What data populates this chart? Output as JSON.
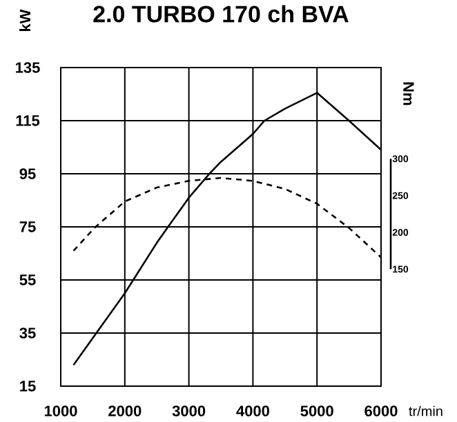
{
  "chart_data": {
    "type": "line",
    "title": "2.0 TURBO 170 ch BVA",
    "xlabel": "tr/min",
    "ylabel": "kW",
    "y2label": "Nm",
    "xlim": [
      1000,
      6000
    ],
    "xticks": [
      1000,
      2000,
      3000,
      4000,
      5000,
      6000
    ],
    "ylim": [
      15,
      135
    ],
    "yticks": [
      15,
      35,
      55,
      75,
      95,
      115,
      135
    ],
    "y2lim": [
      -9,
      424
    ],
    "y2ticks": [
      150,
      200,
      250,
      300
    ],
    "grid": true,
    "series": [
      {
        "color": "#000000",
        "line_style": "solid",
        "x": [
          1200,
          2000,
          2500,
          2675,
          3000,
          3320,
          3500,
          4000,
          4180,
          4500,
          5000,
          5500,
          6000
        ],
        "values": [
          23,
          50,
          69,
          75,
          86,
          95,
          99.5,
          110,
          115,
          119.5,
          125.5,
          115,
          104
        ]
      },
      {
        "color": "#000000",
        "line_style": "dashed",
        "axis": "y2",
        "x": [
          1200,
          1525,
          2000,
          2500,
          3000,
          3500,
          4000,
          4500,
          5000,
          5500,
          6000
        ],
        "values": [
          175,
          206,
          242,
          261,
          270,
          274,
          270,
          259,
          239,
          206,
          166
        ]
      }
    ]
  }
}
